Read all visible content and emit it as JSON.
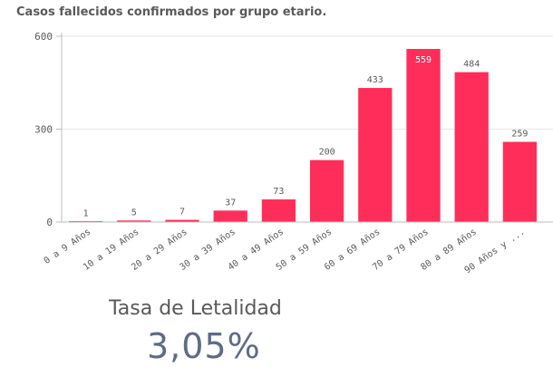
{
  "chart_data": {
    "type": "bar",
    "title": "Casos fallecidos confirmados por grupo etario.",
    "categories": [
      "0 a 9 Años",
      "10 a 19 Años",
      "20 a 29 Años",
      "30 a 39 Años",
      "40 a 49 Años",
      "50 a 59 Años",
      "60 a 69 Años",
      "70 a 79 Años",
      "80 a 89 Años",
      "90 Años y ..."
    ],
    "values": [
      1,
      5,
      7,
      37,
      73,
      200,
      433,
      559,
      484,
      259
    ],
    "ylim": [
      0,
      600
    ],
    "yticks": [
      0,
      300,
      600
    ],
    "grid": true,
    "bar_color": "#ff2d5a"
  },
  "kpi": {
    "label": "Tasa de Letalidad",
    "value": "3,05%"
  }
}
